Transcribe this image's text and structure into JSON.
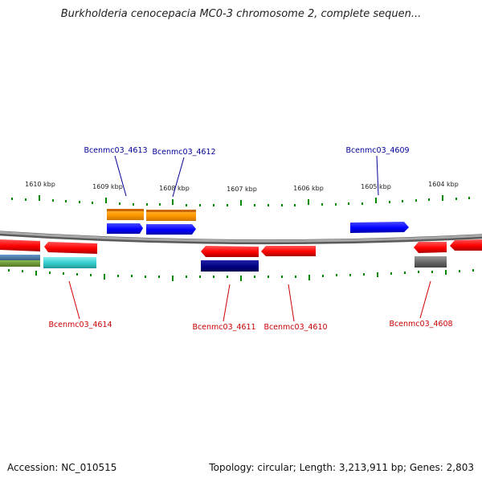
{
  "title": "Burkholderia cenocepacia MC0-3 chromosome 2, complete sequen...",
  "footer": {
    "accession": "Accession: NC_010515",
    "summary": "Topology: circular; Length: 3,213,911 bp; Genes: 2,803"
  },
  "scale_labels": [
    "1610 kbp",
    "1609 kbp",
    "1608 kbp",
    "1607 kbp",
    "1606 kbp",
    "1605 kbp",
    "1604 kbp"
  ],
  "gene_labels": {
    "top": [
      "Bcenmc03_4613",
      "Bcenmc03_4612",
      "Bcenmc03_4609"
    ],
    "bottom": [
      "Bcenmc03_4614",
      "Bcenmc03_4611",
      "Bcenmc03_4610",
      "Bcenmc03_4608"
    ]
  },
  "colors": {
    "forward_cds": "#0000ff",
    "reverse_cds": "#ff0000",
    "orange": "#ff9900",
    "cyan": "#33cccc",
    "navy": "#000080",
    "gray": "#666666",
    "blue_steel": "#4477aa",
    "olive": "#669933",
    "tick": "#008800",
    "backbone": "#888888",
    "top_label": "#000099",
    "bottom_label": "#cc0000"
  }
}
